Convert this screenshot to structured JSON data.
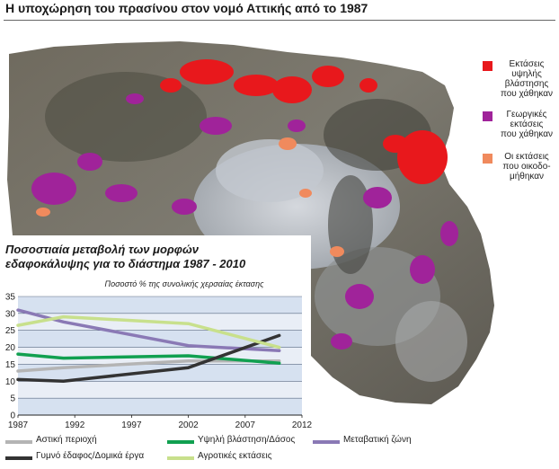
{
  "title": "Η υποχώρηση του πρασίνου στον νομό Αττικής από το 1987",
  "map_legend": [
    {
      "label_lines": [
        "Εκτάσεις",
        "υψηλής",
        "βλάστησης",
        "που χάθηκαν"
      ],
      "color": "#e8181c"
    },
    {
      "label_lines": [
        "Γεωργικές",
        "εκτάσεις",
        "που χάθηκαν"
      ],
      "color": "#a0239a"
    },
    {
      "label_lines": [
        "Οι εκτάσεις",
        "που οικοδο-",
        "μήθηκαν"
      ],
      "color": "#f08a5d"
    }
  ],
  "chart_data": {
    "type": "line",
    "title_lines": [
      "Ποσοστιαία μεταβολή των μορφών",
      "εδαφοκάλυψης για το διάστημα 1987 - 2010"
    ],
    "subtitle": "Ποσοστό % της συνολικής χερσαίας έκτασης",
    "x_ticks": [
      "1987",
      "1992",
      "1997",
      "2002",
      "2007",
      "2012"
    ],
    "y_ticks": [
      "0",
      "5",
      "10",
      "15",
      "20",
      "25",
      "30",
      "35"
    ],
    "xlim": [
      1987,
      2012
    ],
    "ylim": [
      0,
      35
    ],
    "grid": true,
    "series": [
      {
        "name": "Αστική περιοχή",
        "color": "#b4b4b4",
        "x": [
          1987,
          1991,
          2002,
          2010
        ],
        "y": [
          13,
          14,
          16,
          16
        ]
      },
      {
        "name": "Υψηλή βλάστηση/Δάσος",
        "color": "#11a050",
        "x": [
          1987,
          1991,
          2002,
          2010
        ],
        "y": [
          18,
          16.8,
          17.5,
          15.3
        ]
      },
      {
        "name": "Μεταβατική ζώνη",
        "color": "#8a79b5",
        "x": [
          1987,
          1991,
          2002,
          2010
        ],
        "y": [
          31,
          27.5,
          20.5,
          19
        ]
      },
      {
        "name": "Γυμνό έδαφος/Δομικά έργα",
        "color": "#333333",
        "x": [
          1987,
          1991,
          2002,
          2010
        ],
        "y": [
          10.5,
          10,
          14,
          23.5
        ]
      },
      {
        "name": "Αγροτικές εκτάσεις",
        "color": "#c8e08c",
        "x": [
          1987,
          1991,
          2002,
          2010
        ],
        "y": [
          26.5,
          29,
          27,
          20
        ]
      }
    ]
  }
}
